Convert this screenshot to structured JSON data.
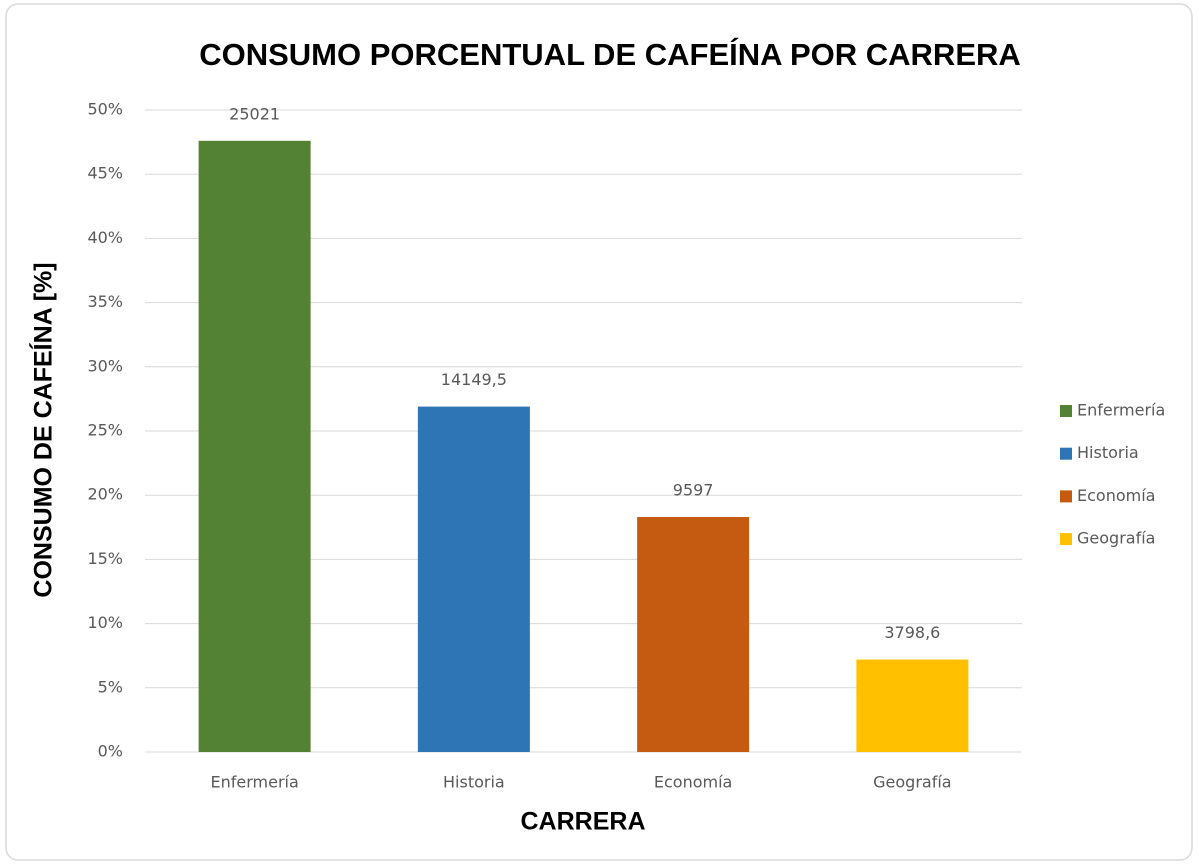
{
  "chart_data": {
    "type": "bar",
    "title": "CONSUMO PORCENTUAL DE CAFEÍNA POR CARRERA",
    "x_label": "CARRERA",
    "y_label": "CONSUMO DE CAFEÍNA [%]",
    "categories": [
      "Enfermería",
      "Historia",
      "Economía",
      "Geografía"
    ],
    "values": [
      47.6,
      26.9,
      18.3,
      7.2
    ],
    "data_labels": [
      "25021",
      "14149,5",
      "9597",
      "3798,6"
    ],
    "colors": [
      "#548235",
      "#2e75b6",
      "#c55a11",
      "#ffc000"
    ],
    "ylim": [
      0,
      50
    ],
    "yticks": [
      {
        "value": 0,
        "label": "0%"
      },
      {
        "value": 5,
        "label": "5%"
      },
      {
        "value": 10,
        "label": "10%"
      },
      {
        "value": 15,
        "label": "15%"
      },
      {
        "value": 20,
        "label": "20%"
      },
      {
        "value": 25,
        "label": "25%"
      },
      {
        "value": 30,
        "label": "30%"
      },
      {
        "value": 35,
        "label": "35%"
      },
      {
        "value": 40,
        "label": "40%"
      },
      {
        "value": 45,
        "label": "45%"
      },
      {
        "value": 50,
        "label": "50%"
      }
    ],
    "grid": true,
    "legend": "right"
  }
}
